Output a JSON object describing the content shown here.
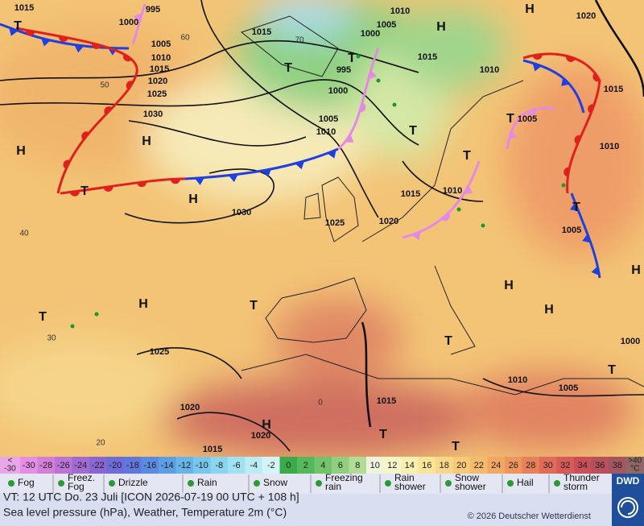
{
  "map": {
    "isobar_labels": [
      "1015",
      "995",
      "1000",
      "1005",
      "1010",
      "1015",
      "1020",
      "1025",
      "1030",
      "1015",
      "1010",
      "1005",
      "1000",
      "995",
      "1000",
      "1005",
      "1010",
      "1015",
      "1010",
      "1020",
      "1015",
      "1005",
      "1010",
      "1015",
      "1010",
      "1020",
      "1025",
      "1030",
      "1005",
      "1025",
      "1020",
      "1020",
      "1015",
      "1015",
      "1010",
      "1005",
      "1000"
    ],
    "highs": [
      "H",
      "H",
      "H",
      "H",
      "H",
      "H",
      "H",
      "H",
      "H",
      "H"
    ],
    "lows": [
      "T",
      "T",
      "T",
      "T",
      "T",
      "T",
      "T",
      "T",
      "T",
      "T",
      "T",
      "T",
      "T",
      "T"
    ],
    "isotherm_labels": [
      "60",
      "50",
      "40",
      "30",
      "20",
      "70",
      "0"
    ]
  },
  "temperature_scale": {
    "below": [
      "<",
      "-30"
    ],
    "above": [
      ">40",
      "°C"
    ],
    "below_color": "#eaa6ea",
    "above_color": "#8f6767",
    "steps": [
      -30,
      -28,
      -26,
      -24,
      -22,
      -20,
      -18,
      -16,
      -14,
      -12,
      -10,
      -8,
      -6,
      -4,
      -2,
      0,
      2,
      4,
      6,
      8,
      10,
      12,
      14,
      16,
      18,
      20,
      22,
      24,
      26,
      28,
      30,
      32,
      34,
      36,
      38
    ],
    "colors": [
      "#e58ee5",
      "#d27fd8",
      "#bb73d6",
      "#a26bd4",
      "#8a66d4",
      "#6f6bd9",
      "#6077dd",
      "#5a8be0",
      "#5d9fe4",
      "#68b3e8",
      "#77c6ec",
      "#8ad5ef",
      "#a0e1f2",
      "#bbecf5",
      "#d4f4f7",
      "#3aaa4a",
      "#55b85a",
      "#72c46a",
      "#8fcf7d",
      "#b0dc94",
      "#eef5dc",
      "#f4f5c9",
      "#f7f0b0",
      "#f8e59a",
      "#f8d888",
      "#f7ca78",
      "#f5ba6c",
      "#f2a862",
      "#ef965c",
      "#e88159",
      "#e06c58",
      "#d65a57",
      "#c95058",
      "#b7505c",
      "#a55560"
    ]
  },
  "weather_legend": [
    [
      "Fog"
    ],
    [
      "Freez.",
      "Fog"
    ],
    [
      "Drizzle"
    ],
    [
      "Rain"
    ],
    [
      "Snow"
    ],
    [
      "Freezing",
      "rain"
    ],
    [
      "Rain",
      "shower"
    ],
    [
      "Snow",
      "shower"
    ],
    [
      "Hail"
    ],
    [
      "Thunder",
      "storm"
    ]
  ],
  "footer": {
    "valid_time": "VT: 12 UTC Do.   23 Juli [ICON 2026-07-19  00 UTC + 108 h]",
    "description": "Sea level pressure (hPa), Weather, Temperature 2m (°C)",
    "copyright": "© 2026 Deutscher Wetterdienst",
    "logo": "DWD"
  }
}
